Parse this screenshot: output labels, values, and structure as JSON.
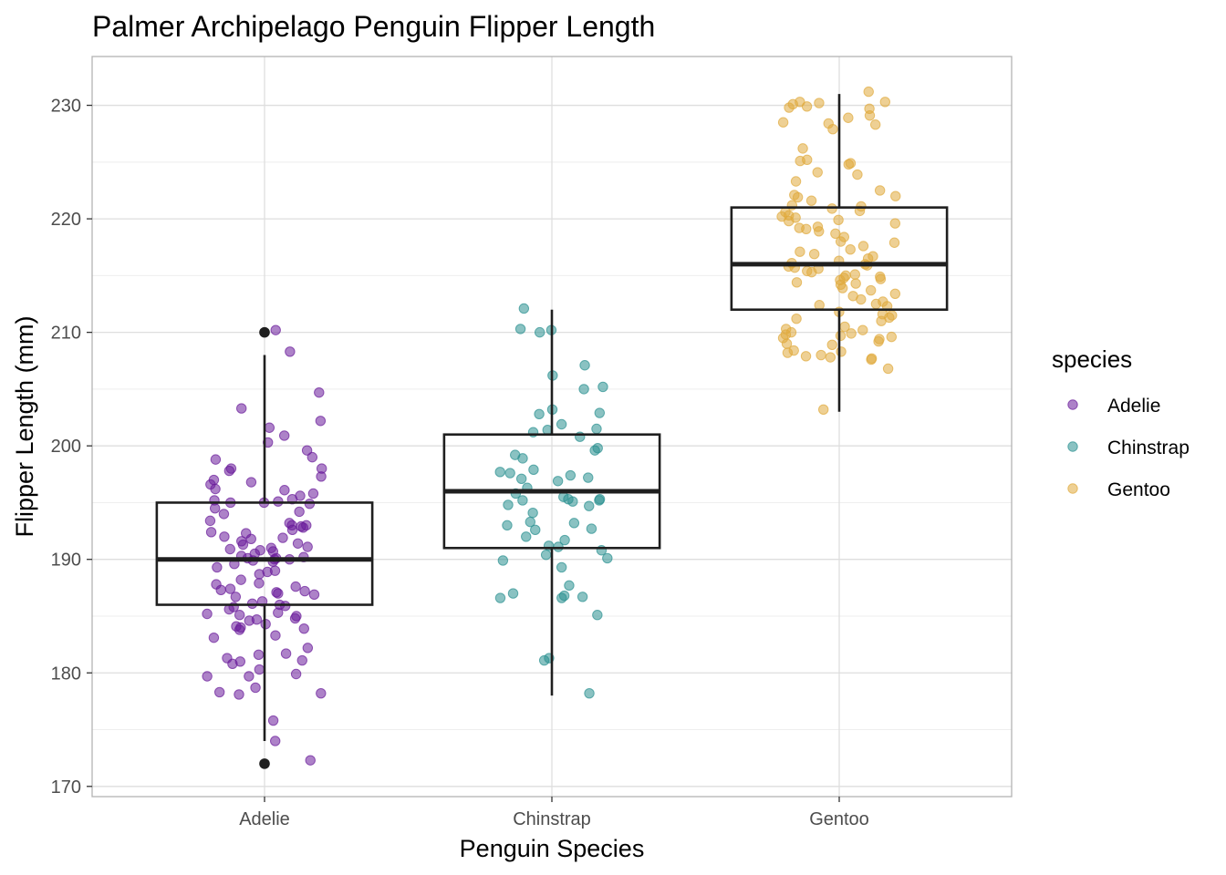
{
  "chart_data": {
    "type": "boxplot",
    "title": "Palmer Archipelago Penguin Flipper Length",
    "xlabel": "Penguin Species",
    "ylabel": "Flipper Length (mm)",
    "categories": [
      "Adelie",
      "Chinstrap",
      "Gentoo"
    ],
    "ylim": [
      169.1,
      234.3
    ],
    "yticks": [
      170,
      180,
      190,
      200,
      210,
      220,
      230
    ],
    "grid": true,
    "legend": {
      "title": "species",
      "position": "right",
      "entries": [
        {
          "label": "Adelie",
          "color": "#6a1b9a"
        },
        {
          "label": "Chinstrap",
          "color": "#2a9090"
        },
        {
          "label": "Gentoo",
          "color": "#e0aa3c"
        }
      ]
    },
    "boxes": [
      {
        "category": "Adelie",
        "whisker_low": 174,
        "q1": 186,
        "median": 190,
        "q3": 195,
        "whisker_high": 208,
        "outliers": [
          172,
          210
        ]
      },
      {
        "category": "Chinstrap",
        "whisker_low": 178,
        "q1": 191,
        "median": 196,
        "q3": 201,
        "whisker_high": 212,
        "outliers": []
      },
      {
        "category": "Gentoo",
        "whisker_low": 203,
        "q1": 212,
        "median": 216,
        "q3": 221,
        "whisker_high": 231,
        "outliers": []
      }
    ],
    "points": [
      {
        "species": "Adelie",
        "values": [
          210.2,
          203.3,
          201.6,
          202.2,
          200.9,
          200.3,
          199.6,
          199.0,
          198.8,
          198.0,
          198.0,
          197.8,
          197.3,
          197.0,
          196.8,
          196.6,
          196.2,
          196.1,
          195.8,
          195.6,
          195.3,
          195.2,
          195.1,
          195.0,
          195.0,
          194.9,
          194.5,
          194.2,
          194.0,
          193.4,
          193.2,
          193.0,
          193.0,
          192.9,
          192.8,
          192.6,
          192.4,
          192.3,
          192.0,
          191.9,
          191.8,
          191.6,
          191.4,
          191.3,
          191.1,
          191.0,
          190.9,
          190.8,
          190.7,
          190.5,
          190.3,
          190.2,
          190.1,
          190.1,
          190.0,
          190.0,
          189.9,
          189.8,
          189.6,
          189.3,
          189.0,
          188.9,
          188.7,
          188.2,
          187.9,
          187.8,
          187.6,
          187.4,
          187.3,
          187.2,
          187.1,
          187.0,
          186.9,
          186.7,
          186.3,
          186.1,
          186.0,
          185.9,
          185.8,
          185.6,
          185.3,
          185.2,
          185.1,
          185.0,
          184.8,
          184.7,
          184.6,
          184.3,
          184.1,
          184.0,
          183.9,
          183.8,
          183.3,
          183.1,
          182.2,
          181.7,
          181.6,
          181.3,
          181.1,
          181.0,
          180.8,
          180.3,
          179.9,
          179.7,
          179.7,
          178.7,
          178.3,
          178.2,
          178.1,
          175.8,
          174.0,
          172.3,
          208.3,
          204.7
        ]
      },
      {
        "species": "Chinstrap",
        "values": [
          212.1,
          210.3,
          210.2,
          210.0,
          207.1,
          206.2,
          205.2,
          205.0,
          203.2,
          202.9,
          202.8,
          201.9,
          201.5,
          201.4,
          201.2,
          200.8,
          199.8,
          199.6,
          199.2,
          198.9,
          197.9,
          197.7,
          197.6,
          197.4,
          197.2,
          197.1,
          196.9,
          196.3,
          195.8,
          195.5,
          195.3,
          195.3,
          195.2,
          195.2,
          195.1,
          194.8,
          194.7,
          194.1,
          193.3,
          193.2,
          193.0,
          192.7,
          192.6,
          192.0,
          191.7,
          191.2,
          191.1,
          190.8,
          190.4,
          190.1,
          189.9,
          189.3,
          187.7,
          187.0,
          186.8,
          186.7,
          186.6,
          186.6,
          185.1,
          181.3,
          181.1,
          178.2
        ]
      },
      {
        "species": "Gentoo",
        "values": [
          231.2,
          230.3,
          230.3,
          230.2,
          230.1,
          229.9,
          229.8,
          229.7,
          229.1,
          228.9,
          228.5,
          228.4,
          228.3,
          227.9,
          226.2,
          225.2,
          225.1,
          224.9,
          224.8,
          224.1,
          223.9,
          223.3,
          222.5,
          222.1,
          222.0,
          221.9,
          221.6,
          221.2,
          221.1,
          220.9,
          220.7,
          220.6,
          220.3,
          220.2,
          220.1,
          219.9,
          219.8,
          219.6,
          219.3,
          219.2,
          219.1,
          218.9,
          218.7,
          218.0,
          217.9,
          217.6,
          217.3,
          217.1,
          216.9,
          216.7,
          216.5,
          216.3,
          216.1,
          216.0,
          215.9,
          215.8,
          215.7,
          215.6,
          215.4,
          215.3,
          215.1,
          215.0,
          214.9,
          214.8,
          214.7,
          214.6,
          214.4,
          214.3,
          214.2,
          213.9,
          213.7,
          213.4,
          213.2,
          212.9,
          212.7,
          212.4,
          212.3,
          211.8,
          211.6,
          211.5,
          211.3,
          211.0,
          210.5,
          210.3,
          210.2,
          210.0,
          209.9,
          209.8,
          209.6,
          209.5,
          209.4,
          209.2,
          209.0,
          208.9,
          208.4,
          208.3,
          208.2,
          208.0,
          207.9,
          207.8,
          207.7,
          207.6,
          206.8,
          203.2,
          212.5,
          218.4,
          209.7,
          211.2
        ]
      }
    ]
  }
}
